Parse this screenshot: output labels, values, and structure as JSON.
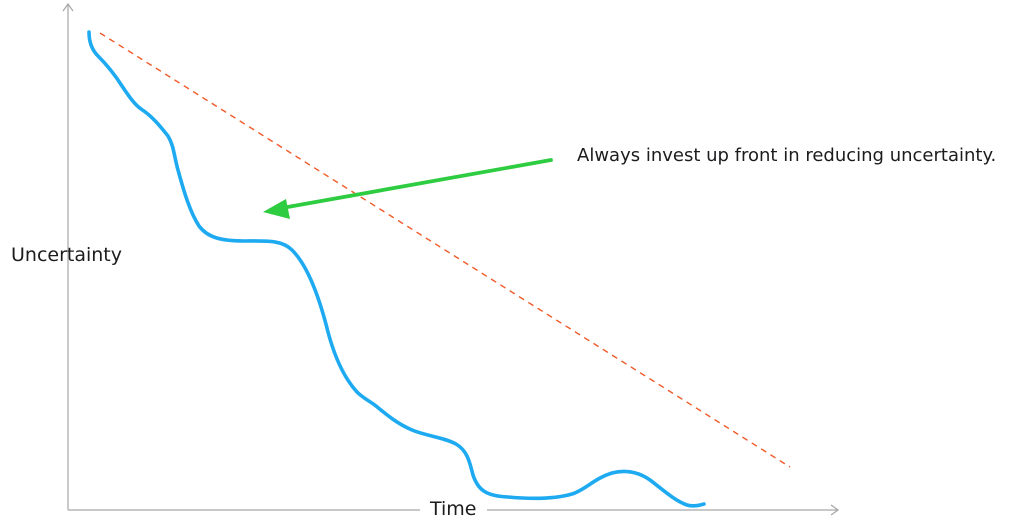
{
  "axes": {
    "y_label": "Uncertainty",
    "x_label": "Time"
  },
  "annotation": {
    "text": "Always invest up front in reducing uncertainty."
  },
  "colors": {
    "axis": "#a6a6a6",
    "curve": "#1eaaf1",
    "dashed_line": "#f05a28",
    "arrow": "#2ecc40",
    "text": "#1c1c1e"
  }
}
